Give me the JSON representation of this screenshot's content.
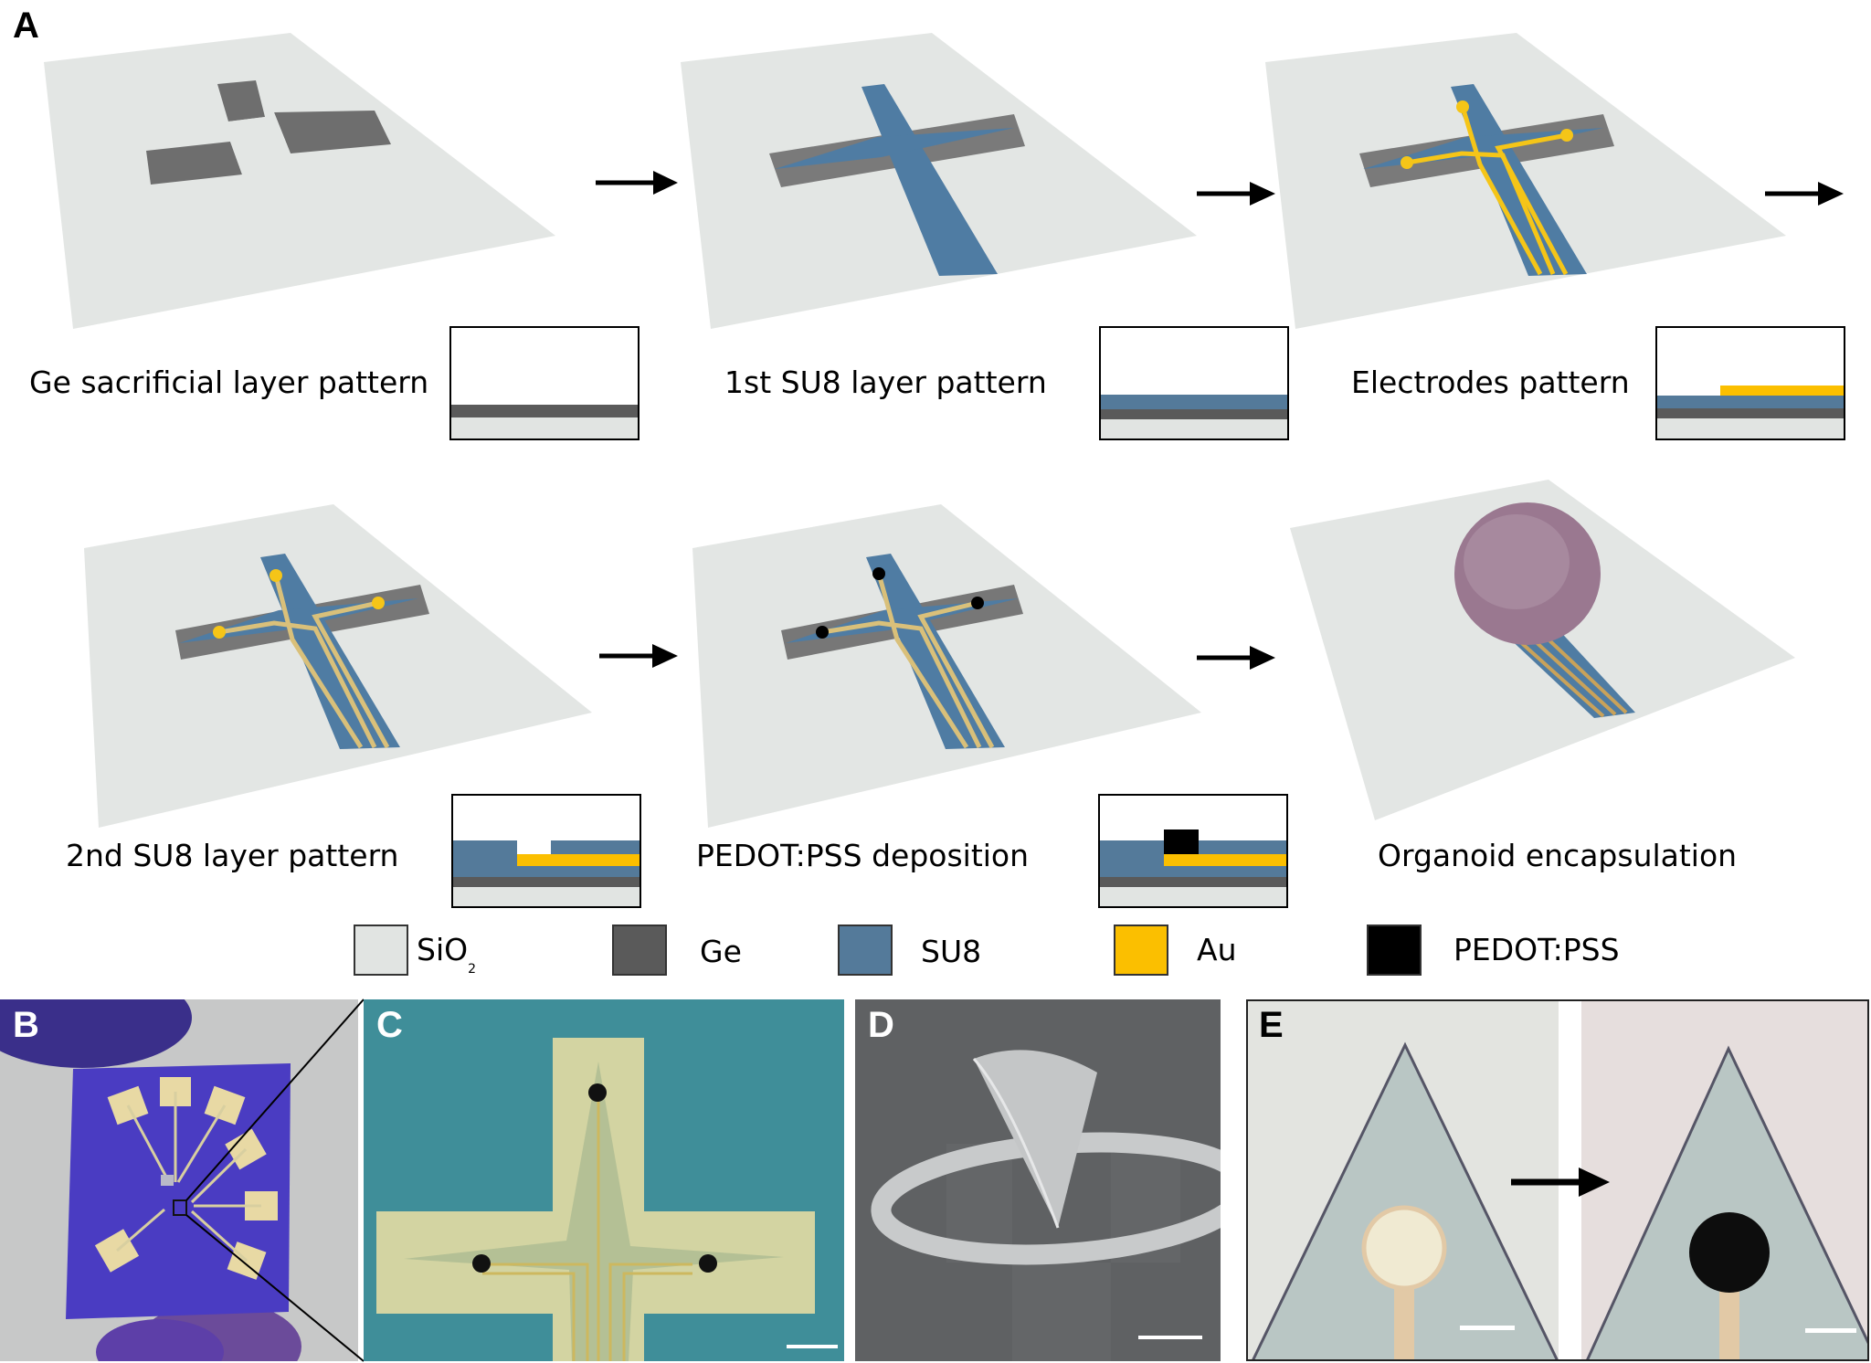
{
  "panel_labels": {
    "a": "A",
    "b": "B",
    "c": "C",
    "d": "D",
    "e": "E"
  },
  "steps": [
    {
      "label": "Ge sacrificial layer pattern"
    },
    {
      "label": "1st SU8 layer pattern"
    },
    {
      "label": "Electrodes pattern"
    },
    {
      "label": "2nd SU8 layer pattern"
    },
    {
      "label": "PEDOT:PSS deposition"
    },
    {
      "label": "Organoid encapsulation"
    }
  ],
  "legend": [
    {
      "label": "SiO",
      "subscript": "2",
      "color": "#e1e4e2"
    },
    {
      "label": "Ge",
      "color": "#5a5a5a"
    },
    {
      "label": "SU8",
      "color": "#547a9a"
    },
    {
      "label": "Au",
      "color": "#fbbf00"
    },
    {
      "label": "PEDOT:PSS",
      "color": "#000000"
    }
  ],
  "colors": {
    "substrate": "#e3e6e4",
    "ge": "#707070",
    "su8": "#4f7ca3",
    "gold": "#f5c518",
    "pedot": "#000000",
    "organoid": "#9a7890"
  },
  "icons": {
    "arrow": "right-arrow-icon"
  }
}
